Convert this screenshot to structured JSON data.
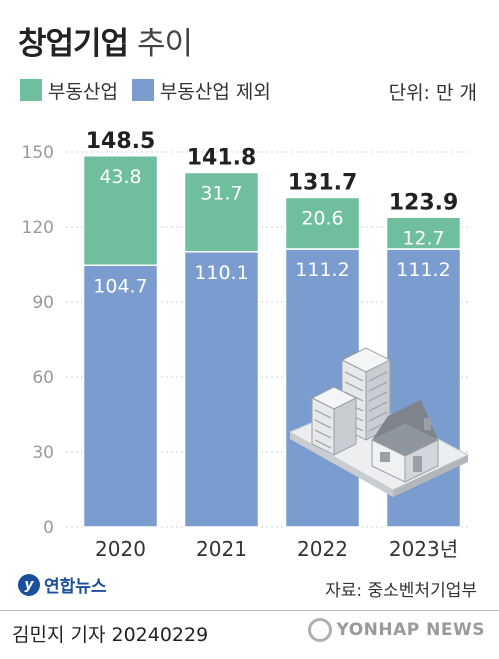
{
  "title_main": "창업기업",
  "title_sub": "추이",
  "legend": [
    {
      "label": "부동산업",
      "color": "#6fbf9f"
    },
    {
      "label": "부동산업 제외",
      "color": "#7b9ccf"
    }
  ],
  "unit": "단위: 만 개",
  "source": "자료: 중소벤처기업부",
  "logo_text": "연합뉴스",
  "byline": "김민지 기자  20240229",
  "watermark": "YONHAP NEWS",
  "chart_data": {
    "type": "bar",
    "stacked": true,
    "categories": [
      "2020",
      "2021",
      "2022",
      "2023년"
    ],
    "series": [
      {
        "name": "부동산업 제외",
        "values": [
          104.7,
          110.1,
          111.2,
          111.2
        ],
        "color": "#7b9ccf"
      },
      {
        "name": "부동산업",
        "values": [
          43.8,
          31.7,
          20.6,
          12.7
        ],
        "color": "#6fbf9f"
      }
    ],
    "totals": [
      "148.5",
      "141.8",
      "131.7",
      "123.9"
    ],
    "value_labels": [
      [
        "104.7",
        "110.1",
        "111.2",
        "111.2"
      ],
      [
        "43.8",
        "31.7",
        "20.6",
        "12.7"
      ]
    ],
    "yticks": [
      0,
      30,
      60,
      90,
      120,
      150
    ],
    "ylim": [
      0,
      150
    ],
    "grid": true,
    "legend": "top-left"
  }
}
